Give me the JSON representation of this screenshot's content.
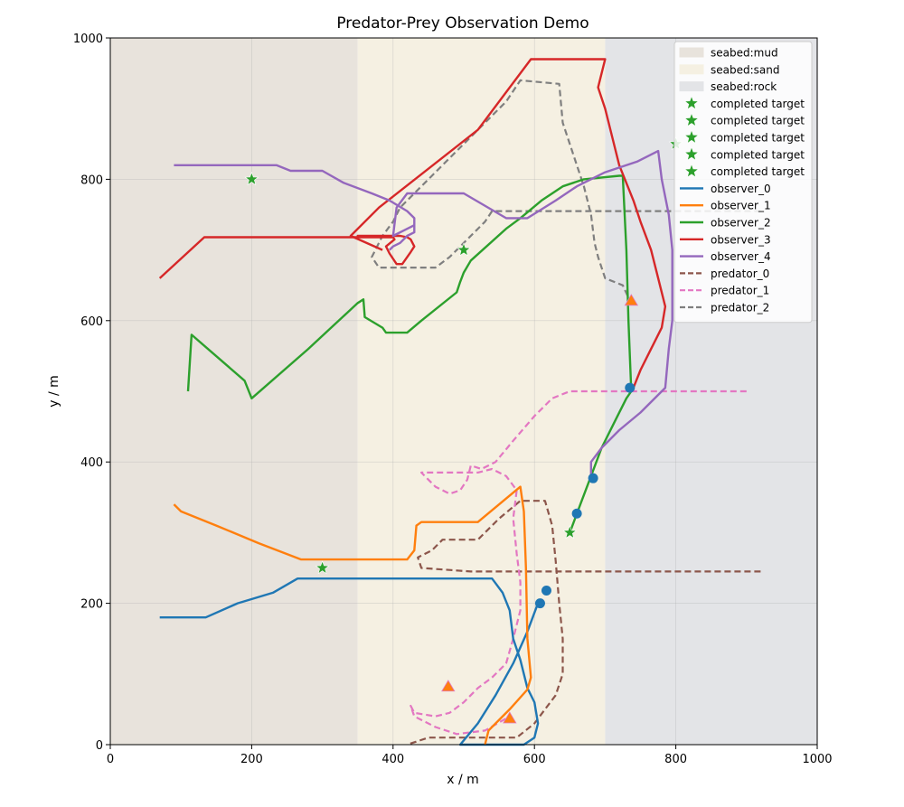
{
  "chart_data": {
    "type": "line",
    "title": "Predator-Prey Observation Demo",
    "xlabel": "x / m",
    "ylabel": "y / m",
    "xlim": [
      0,
      1000
    ],
    "ylim": [
      0,
      1000
    ],
    "xticks": [
      "0",
      "200",
      "400",
      "600",
      "800",
      "1000"
    ],
    "yticks": [
      "0",
      "200",
      "400",
      "600",
      "800",
      "1000"
    ],
    "grid": true,
    "legend_position": "top-right",
    "regions": [
      {
        "name": "seabed:mud",
        "x": [
          0,
          350
        ],
        "color": "#e8e3dc"
      },
      {
        "name": "seabed:sand",
        "x": [
          350,
          700
        ],
        "color": "#f5f0e2"
      },
      {
        "name": "seabed:rock",
        "x": [
          700,
          1000
        ],
        "color": "#e3e4e7"
      }
    ],
    "targets": {
      "label": "completed target",
      "color": "#2ca02c",
      "points": [
        [
          200,
          800
        ],
        [
          300,
          250
        ],
        [
          500,
          700
        ],
        [
          650,
          300
        ],
        [
          800,
          850
        ]
      ]
    },
    "observers": [
      {
        "name": "observer_0",
        "color": "#1f77b4",
        "points": [
          [
            70,
            180
          ],
          [
            135,
            180
          ],
          [
            180,
            200
          ],
          [
            230,
            215
          ],
          [
            265,
            235
          ],
          [
            350,
            235
          ],
          [
            540,
            235
          ],
          [
            555,
            215
          ],
          [
            565,
            190
          ],
          [
            570,
            150
          ],
          [
            580,
            120
          ],
          [
            590,
            80
          ],
          [
            600,
            60
          ],
          [
            605,
            30
          ],
          [
            600,
            10
          ],
          [
            585,
            0
          ],
          [
            495,
            0
          ],
          [
            520,
            30
          ],
          [
            545,
            70
          ],
          [
            570,
            115
          ],
          [
            590,
            160
          ],
          [
            605,
            200
          ]
        ],
        "marker": [
          608,
          200
        ]
      },
      {
        "name": "observer_1",
        "color": "#ff7f0e",
        "points": [
          [
            90,
            340
          ],
          [
            100,
            330
          ],
          [
            150,
            310
          ],
          [
            210,
            285
          ],
          [
            270,
            262
          ],
          [
            350,
            262
          ],
          [
            420,
            262
          ],
          [
            430,
            275
          ],
          [
            433,
            310
          ],
          [
            440,
            315
          ],
          [
            520,
            315
          ],
          [
            580,
            365
          ],
          [
            585,
            330
          ],
          [
            588,
            250
          ],
          [
            590,
            150
          ],
          [
            595,
            95
          ],
          [
            590,
            78
          ],
          [
            565,
            50
          ],
          [
            535,
            20
          ],
          [
            530,
            0
          ]
        ],
        "marker": [
          617,
          218
        ]
      },
      {
        "name": "observer_2",
        "color": "#2ca02c",
        "points": [
          [
            110,
            500
          ],
          [
            115,
            580
          ],
          [
            190,
            515
          ],
          [
            200,
            490
          ],
          [
            280,
            560
          ],
          [
            350,
            625
          ],
          [
            358,
            630
          ],
          [
            360,
            605
          ],
          [
            385,
            590
          ],
          [
            390,
            583
          ],
          [
            420,
            583
          ],
          [
            440,
            600
          ],
          [
            490,
            640
          ],
          [
            495,
            655
          ],
          [
            500,
            668
          ],
          [
            510,
            685
          ],
          [
            560,
            730
          ],
          [
            580,
            745
          ],
          [
            610,
            770
          ],
          [
            640,
            790
          ],
          [
            670,
            800
          ],
          [
            720,
            805
          ],
          [
            725,
            805
          ],
          [
            730,
            700
          ],
          [
            733,
            600
          ],
          [
            737,
            500
          ],
          [
            730,
            490
          ],
          [
            715,
            460
          ],
          [
            695,
            420
          ],
          [
            680,
            380
          ],
          [
            665,
            340
          ],
          [
            650,
            300
          ]
        ],
        "marker": [
          660,
          327
        ]
      },
      {
        "name": "observer_3",
        "color": "#d62728",
        "points": [
          [
            70,
            660
          ],
          [
            133,
            718
          ],
          [
            350,
            718
          ],
          [
            400,
            718
          ],
          [
            402,
            715
          ],
          [
            390,
            705
          ],
          [
            395,
            695
          ],
          [
            405,
            680
          ],
          [
            413,
            680
          ],
          [
            425,
            697
          ],
          [
            430,
            705
          ],
          [
            425,
            715
          ],
          [
            420,
            718
          ],
          [
            410,
            720
          ],
          [
            350,
            720
          ],
          [
            350,
            718
          ]
        ],
        "path2": [
          [
            385,
            700
          ],
          [
            340,
            720
          ],
          [
            380,
            760
          ],
          [
            520,
            870
          ],
          [
            595,
            970
          ],
          [
            700,
            970
          ],
          [
            690,
            930
          ],
          [
            700,
            900
          ],
          [
            710,
            860
          ],
          [
            720,
            820
          ],
          [
            740,
            770
          ],
          [
            750,
            740
          ],
          [
            765,
            700
          ],
          [
            775,
            660
          ],
          [
            785,
            620
          ],
          [
            780,
            590
          ],
          [
            765,
            560
          ],
          [
            750,
            530
          ],
          [
            740,
            505
          ],
          [
            735,
            500
          ]
        ],
        "marker": [
          735,
          505
        ]
      },
      {
        "name": "observer_4",
        "color": "#9467bd",
        "points": [
          [
            90,
            820
          ],
          [
            150,
            820
          ],
          [
            235,
            820
          ],
          [
            255,
            812
          ],
          [
            300,
            812
          ],
          [
            330,
            795
          ],
          [
            370,
            780
          ],
          [
            395,
            770
          ],
          [
            420,
            755
          ],
          [
            430,
            745
          ],
          [
            430,
            725
          ],
          [
            420,
            720
          ],
          [
            410,
            710
          ],
          [
            400,
            705
          ],
          [
            395,
            700
          ]
        ],
        "path2": [
          [
            430,
            735
          ],
          [
            400,
            720
          ],
          [
            405,
            760
          ],
          [
            420,
            780
          ],
          [
            500,
            780
          ],
          [
            560,
            745
          ],
          [
            590,
            745
          ],
          [
            630,
            770
          ],
          [
            660,
            790
          ],
          [
            700,
            810
          ],
          [
            745,
            825
          ],
          [
            775,
            840
          ],
          [
            780,
            800
          ],
          [
            790,
            750
          ],
          [
            795,
            700
          ],
          [
            795,
            600
          ],
          [
            790,
            560
          ],
          [
            785,
            505
          ],
          [
            750,
            470
          ],
          [
            720,
            445
          ],
          [
            695,
            420
          ],
          [
            680,
            400
          ],
          [
            680,
            380
          ]
        ],
        "marker": [
          683,
          377
        ]
      }
    ],
    "predators": [
      {
        "name": "predator_0",
        "color": "#8c564b",
        "points": [
          [
            920,
            245
          ],
          [
            510,
            245
          ],
          [
            440,
            250
          ],
          [
            435,
            265
          ],
          [
            455,
            275
          ],
          [
            470,
            290
          ],
          [
            520,
            290
          ],
          [
            550,
            320
          ],
          [
            580,
            345
          ],
          [
            615,
            345
          ],
          [
            625,
            310
          ],
          [
            630,
            260
          ],
          [
            635,
            200
          ],
          [
            640,
            150
          ],
          [
            640,
            100
          ],
          [
            630,
            70
          ],
          [
            615,
            50
          ],
          [
            600,
            30
          ],
          [
            575,
            10
          ],
          [
            450,
            10
          ],
          [
            420,
            0
          ]
        ]
      },
      {
        "name": "predator_1",
        "color": "#e377c2",
        "points": [
          [
            900,
            500
          ],
          [
            710,
            500
          ],
          [
            650,
            500
          ],
          [
            625,
            490
          ],
          [
            600,
            465
          ],
          [
            570,
            430
          ],
          [
            545,
            400
          ],
          [
            525,
            390
          ],
          [
            510,
            395
          ],
          [
            505,
            375
          ],
          [
            495,
            360
          ],
          [
            480,
            355
          ],
          [
            460,
            365
          ],
          [
            450,
            375
          ],
          [
            440,
            385
          ],
          [
            520,
            385
          ],
          [
            540,
            390
          ],
          [
            560,
            380
          ],
          [
            575,
            360
          ],
          [
            570,
            320
          ],
          [
            575,
            270
          ],
          [
            580,
            230
          ],
          [
            580,
            190
          ],
          [
            570,
            150
          ],
          [
            560,
            115
          ],
          [
            540,
            95
          ],
          [
            520,
            80
          ],
          [
            500,
            60
          ],
          [
            480,
            45
          ],
          [
            460,
            40
          ],
          [
            430,
            45
          ],
          [
            425,
            55
          ],
          [
            430,
            40
          ],
          [
            460,
            25
          ],
          [
            490,
            15
          ],
          [
            530,
            20
          ],
          [
            565,
            40
          ]
        ]
      },
      {
        "name": "predator_2",
        "color": "#7f7f7f",
        "points": [
          [
            920,
            755
          ],
          [
            540,
            755
          ],
          [
            530,
            740
          ],
          [
            500,
            710
          ],
          [
            480,
            690
          ],
          [
            460,
            675
          ],
          [
            380,
            675
          ],
          [
            370,
            690
          ],
          [
            385,
            720
          ],
          [
            400,
            740
          ],
          [
            410,
            760
          ],
          [
            450,
            800
          ],
          [
            500,
            850
          ],
          [
            560,
            910
          ],
          [
            580,
            940
          ],
          [
            635,
            935
          ],
          [
            640,
            880
          ],
          [
            650,
            850
          ],
          [
            660,
            820
          ],
          [
            670,
            790
          ],
          [
            680,
            750
          ],
          [
            685,
            710
          ],
          [
            690,
            690
          ],
          [
            700,
            660
          ],
          [
            725,
            650
          ],
          [
            735,
            628
          ]
        ]
      }
    ],
    "triangles": [
      {
        "x": 737,
        "y": 628,
        "color": "#ff7f0e"
      },
      {
        "x": 478,
        "y": 82,
        "color": "#ff7f0e"
      },
      {
        "x": 565,
        "y": 37,
        "color": "#ff7f0e"
      }
    ],
    "markers_extra": [
      {
        "x": 608,
        "y": 200
      },
      {
        "x": 617,
        "y": 218
      },
      {
        "x": 660,
        "y": 327
      },
      {
        "x": 683,
        "y": 377
      },
      {
        "x": 735,
        "y": 505
      }
    ]
  }
}
